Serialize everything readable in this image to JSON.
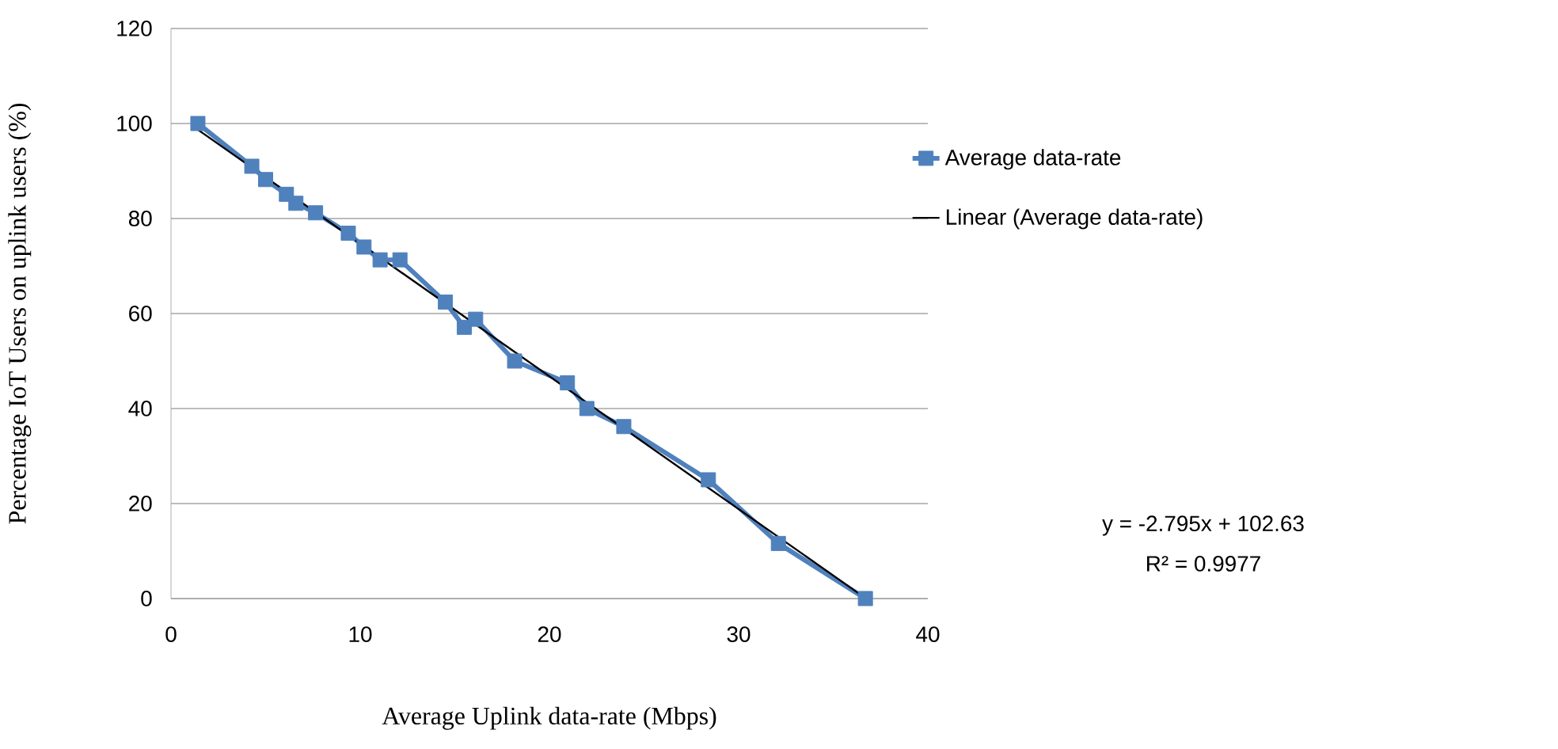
{
  "chart_data": {
    "type": "line",
    "xlabel": "Average Uplink data-rate (Mbps)",
    "ylabel": "Percentage IoT Users on uplink users (%)",
    "xlim": [
      0,
      40
    ],
    "xticks": [
      0,
      10,
      20,
      30,
      40
    ],
    "ylim": [
      0,
      120
    ],
    "yticks": [
      0,
      20,
      40,
      60,
      80,
      100,
      120
    ],
    "grid": "y",
    "legend": "right",
    "series": [
      {
        "name": "Average data-rate",
        "color": "#4f81bd",
        "marker": "square",
        "x": [
          1.42,
          4.27,
          5.0,
          6.1,
          6.6,
          7.64,
          9.37,
          10.2,
          11.05,
          12.1,
          14.5,
          15.5,
          16.1,
          18.16,
          20.95,
          21.98,
          23.93,
          28.4,
          32.1,
          36.7
        ],
        "values": [
          100,
          91,
          88.2,
          85.1,
          83.2,
          81.2,
          76.9,
          74,
          71.3,
          71.3,
          62.4,
          57.1,
          58.8,
          50,
          45.4,
          40,
          36.2,
          25,
          11.6,
          0
        ]
      },
      {
        "name": "Linear (Average data-rate)",
        "color": "#000000",
        "marker": "none",
        "x": [
          1.42,
          36.7
        ],
        "values": [
          98.7,
          0.1
        ]
      }
    ],
    "annotations": [
      "y = -2.795x + 102.63",
      "R² = 0.9977"
    ]
  }
}
